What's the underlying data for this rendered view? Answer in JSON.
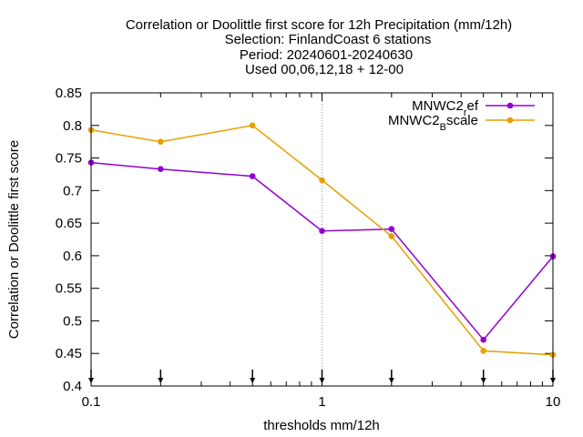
{
  "chart_data": {
    "type": "line",
    "title_lines": [
      "Correlation or Doolittle first score  for 12h Precipitation (mm/12h)",
      "Selection: FinlandCoast      6 stations",
      "Period: 20240601-20240630",
      "Used 00,06,12,18 + 12-00"
    ],
    "xlabel": "thresholds mm/12h",
    "ylabel": "Correlation or Doolittle first score",
    "xscale": "log",
    "xlim": [
      0.1,
      10
    ],
    "ylim": [
      0.4,
      0.85
    ],
    "x_ticks": [
      0.1,
      1,
      10
    ],
    "x_tick_labels": [
      "0.1",
      "1",
      "10"
    ],
    "y_ticks": [
      0.4,
      0.45,
      0.5,
      0.55,
      0.6,
      0.65,
      0.7,
      0.75,
      0.8,
      0.85
    ],
    "y_tick_labels": [
      "0.4",
      "0.45",
      "0.5",
      "0.55",
      "0.6",
      "0.65",
      "0.7",
      "0.75",
      "0.8",
      "0.85"
    ],
    "vertical_gridlines_at": [
      1
    ],
    "legend_position": "top-right",
    "arrow_markers_at": [
      0.1,
      0.2,
      0.5,
      1,
      2,
      5,
      10
    ],
    "series": [
      {
        "name": "MNWC2_ref",
        "legend_main": "MNWC2",
        "legend_sub": "r",
        "legend_tail": "ef",
        "color": "#9400d3",
        "x": [
          0.1,
          0.2,
          0.5,
          1,
          2,
          5,
          10
        ],
        "y": [
          0.743,
          0.733,
          0.722,
          0.638,
          0.641,
          0.471,
          0.599
        ]
      },
      {
        "name": "MNWC2_Bscale",
        "legend_main": "MNWC2",
        "legend_sub": "B",
        "legend_tail": "scale",
        "color": "#e69f00",
        "x": [
          0.1,
          0.2,
          0.5,
          1,
          2,
          5,
          10
        ],
        "y": [
          0.793,
          0.775,
          0.8,
          0.716,
          0.63,
          0.454,
          0.448
        ]
      }
    ]
  }
}
